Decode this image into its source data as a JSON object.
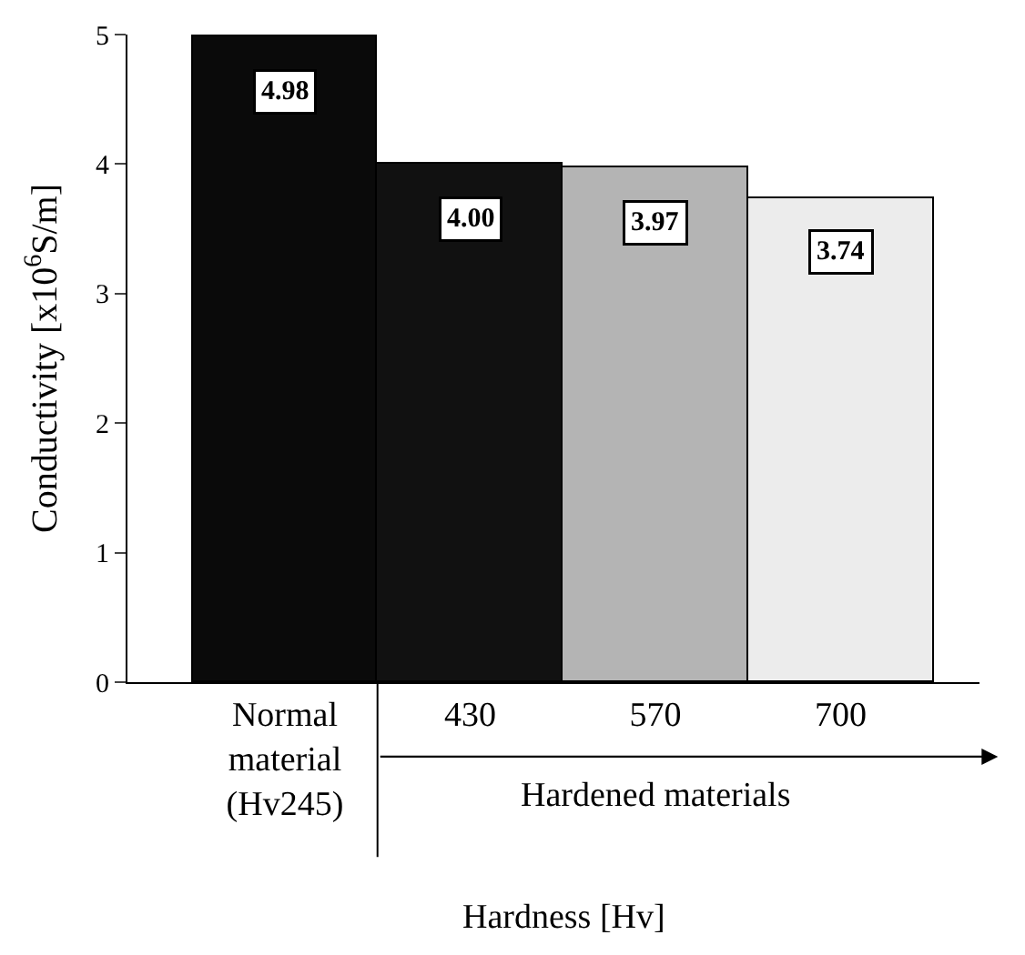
{
  "chart_data": {
    "type": "bar",
    "xlabel": "Hardness [Hv]",
    "ylabel": "Conductivity [x10$^{6}$S/m]",
    "categories": [
      "Normal material (Hv245)",
      "430",
      "570",
      "700"
    ],
    "values": [
      4.98,
      4.0,
      3.97,
      3.74
    ],
    "value_labels": [
      "4.98",
      "4.00",
      "3.97",
      "3.74"
    ],
    "colors": [
      "#0a0a0a",
      "#111111",
      "#b4b4b4",
      "#ececec"
    ],
    "ylim": [
      0,
      5
    ],
    "yticks": [
      0,
      1,
      2,
      3,
      4,
      5
    ],
    "annotations": [
      "Hardened materials"
    ]
  }
}
